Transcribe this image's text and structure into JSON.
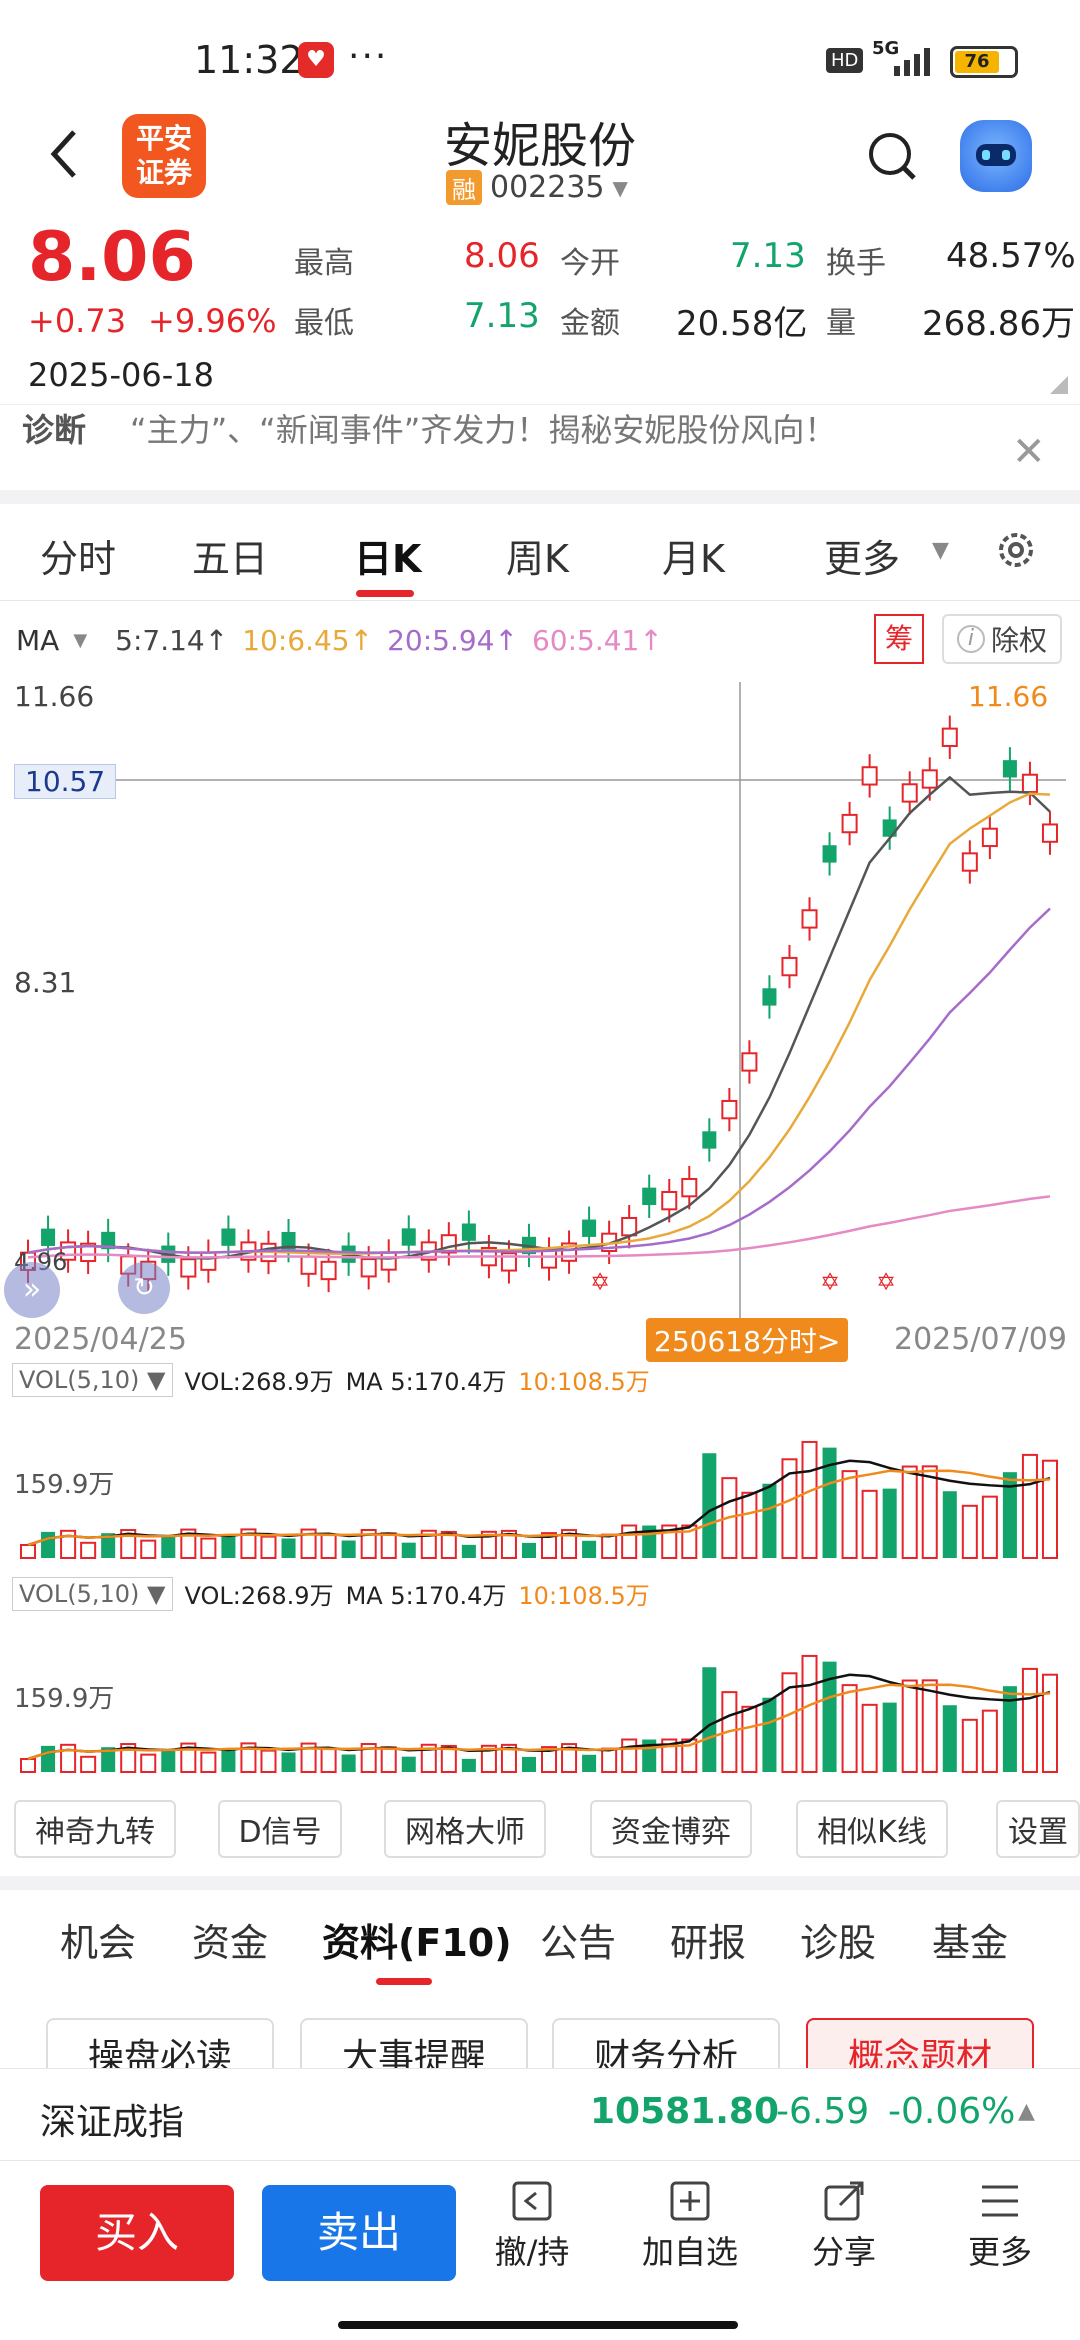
{
  "status": {
    "time": "11:32",
    "dots": "···",
    "hd": "HD",
    "net": "5G",
    "battery": "76"
  },
  "header": {
    "title": "安妮股份",
    "rong": "融",
    "code": "002235",
    "brand_l1": "平安",
    "brand_l2": "证券"
  },
  "quote": {
    "price": "8.06",
    "change": "+0.73",
    "pct": "+9.96%",
    "date": "2025-06-18",
    "high_label": "最高",
    "high": "8.06",
    "open_label": "今开",
    "open": "7.13",
    "turnover_label": "换手",
    "turnover": "48.57%",
    "low_label": "最低",
    "low": "7.13",
    "amount_label": "金额",
    "amount": "20.58亿",
    "vol_label": "量",
    "vol": "268.86万"
  },
  "diag": {
    "label": "诊断",
    "text": "“主力”、“新闻事件”齐发力！揭秘安妮股份风向！"
  },
  "tabs": [
    "分时",
    "五日",
    "日K",
    "周K",
    "月K",
    "更多"
  ],
  "ma_bar": {
    "ma": "MA",
    "ma5": "5:7.14↑",
    "ma10": "10:6.45↑",
    "ma20": "20:5.94↑",
    "ma60": "60:5.41↑",
    "chou": "筹",
    "chuquan": "除权"
  },
  "kline": {
    "y_high": "11.66",
    "y_cursor": "10.57",
    "y_mid": "8.31",
    "y_low": "4.96",
    "max_label": "11.66",
    "date_start": "2025/04/25",
    "date_end": "2025/07/09",
    "cursor_tag": "250618分时>"
  },
  "vol_panel": {
    "label": "VOL(5,10)",
    "vol": "VOL:268.9万",
    "ma5": "MA 5:170.4万",
    "ma10": "10:108.5万",
    "axis": "159.9万"
  },
  "tools": [
    "神奇九转",
    "D信号",
    "网格大师",
    "资金博弈",
    "相似K线",
    "设置"
  ],
  "btabs": [
    "机会",
    "资金",
    "资料(F10)",
    "公告",
    "研报",
    "诊股",
    "基金"
  ],
  "subbtns": [
    "操盘必读",
    "大事提醒",
    "财务分析",
    "概念题材"
  ],
  "index": {
    "name": "深证成指",
    "value": "10581.80",
    "chg": "-6.59",
    "pct": "-0.06%"
  },
  "actions": {
    "buy": "买入",
    "sell": "卖出",
    "a1": "撤/持",
    "a2": "加自选",
    "a3": "分享",
    "a4": "更多"
  },
  "colors": {
    "up": "#e5252a",
    "down": "#12a46b",
    "ma5": "#555555",
    "ma10": "#e9a93a",
    "ma20": "#a66ccc",
    "ma60": "#e58ac4",
    "accent": "#f08a1c"
  }
}
